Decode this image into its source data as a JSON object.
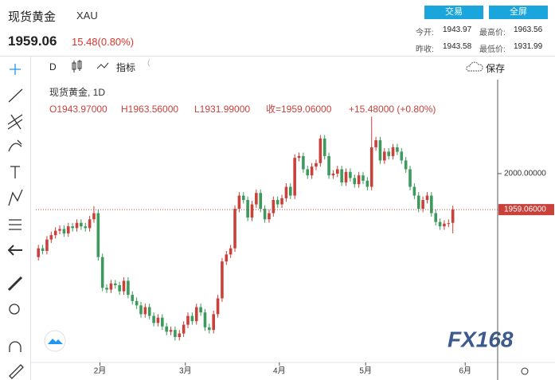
{
  "header": {
    "name": "现货黄金",
    "symbol": "XAU",
    "price": "1959.06",
    "change": "15.48(0.80%)",
    "buttons": [
      "交易",
      "全屏"
    ],
    "stats": [
      [
        "今开:",
        "1943.97",
        "最高价:",
        "1963.56"
      ],
      [
        "昨收:",
        "1943.58",
        "最低价:",
        "1931.99"
      ]
    ]
  },
  "toolbar": {
    "interval": "D",
    "indicators": "指标",
    "save": "保存"
  },
  "legend": {
    "title": "现货黄金, 1D",
    "ohlc": [
      "O1943.97000",
      "H1963.56000",
      "L1931.99000",
      "收=1959.06000",
      "+15.48000 (+0.80%)"
    ]
  },
  "watermark": "FX168",
  "chart_data": {
    "type": "candlestick",
    "up_color": "#c9413b",
    "down_color": "#3b9a5c",
    "ylim": [
      1785,
      2107
    ],
    "yticks": [
      {
        "value": 2000,
        "label": "2000.00000"
      }
    ],
    "xlim": [
      -0.6,
      107.5
    ],
    "xticks": [
      {
        "value": 14.4,
        "label": "2月"
      },
      {
        "value": 34.4,
        "label": "3月"
      },
      {
        "value": 56.4,
        "label": "4月"
      },
      {
        "value": 76.6,
        "label": "5月"
      },
      {
        "value": 99.9,
        "label": "6月"
      }
    ],
    "last_price": 1959.06,
    "last_price_label": "1959.06000",
    "open": [
      1905,
      1915,
      1912,
      1925,
      1930,
      1935,
      1937,
      1932,
      1940,
      1938,
      1944,
      1940,
      1938,
      1948,
      1955,
      1905,
      1870,
      1868,
      1875,
      1873,
      1866,
      1878,
      1862,
      1855,
      1850,
      1840,
      1848,
      1838,
      1830,
      1836,
      1826,
      1820,
      1822,
      1814,
      1818,
      1828,
      1838,
      1832,
      1848,
      1842,
      1825,
      1822,
      1840,
      1858,
      1900,
      1908,
      1915,
      1960,
      1975,
      1970,
      1950,
      1965,
      1978,
      1960,
      1948,
      1955,
      1970,
      1965,
      1972,
      1985,
      1975,
      2018,
      2020,
      2005,
      1998,
      2008,
      2012,
      2040,
      2020,
      1998,
      2000,
      2005,
      1990,
      2002,
      1995,
      1988,
      1998,
      1992,
      1985,
      2030,
      2038,
      2015,
      2025,
      2020,
      2030,
      2025,
      2015,
      2005,
      1985,
      1975,
      1960,
      1970,
      1975,
      1955,
      1945,
      1940,
      1943,
      1943.97
    ],
    "high": [
      1919,
      1919,
      1929,
      1934,
      1939,
      1941,
      1941,
      1944,
      1944,
      1948,
      1948,
      1944,
      1952,
      1963,
      1959,
      1909,
      1874,
      1879,
      1879,
      1877,
      1882,
      1882,
      1866,
      1859,
      1854,
      1852,
      1852,
      1842,
      1840,
      1840,
      1830,
      1826,
      1826,
      1822,
      1832,
      1842,
      1842,
      1852,
      1852,
      1846,
      1829,
      1844,
      1862,
      1904,
      1912,
      1919,
      1964,
      1979,
      1979,
      1974,
      1969,
      1982,
      1982,
      1964,
      1959,
      1974,
      1974,
      1976,
      1989,
      1989,
      2022,
      2024,
      2024,
      2009,
      2012,
      2016,
      2044,
      2044,
      2024,
      2004,
      2009,
      2009,
      2006,
      2006,
      1999,
      2002,
      2002,
      1996,
      2065,
      2042,
      2042,
      2029,
      2029,
      2034,
      2034,
      2029,
      2019,
      2009,
      1989,
      1979,
      1974,
      1979,
      1979,
      1959,
      1949,
      1947,
      1948,
      1963.56
    ],
    "low": [
      1901,
      1908,
      1908,
      1921,
      1926,
      1931,
      1928,
      1928,
      1934,
      1934,
      1936,
      1934,
      1934,
      1944,
      1901,
      1866,
      1864,
      1864,
      1869,
      1862,
      1862,
      1858,
      1851,
      1846,
      1836,
      1836,
      1834,
      1826,
      1826,
      1822,
      1816,
      1816,
      1810,
      1810,
      1814,
      1824,
      1828,
      1828,
      1838,
      1821,
      1818,
      1818,
      1836,
      1854,
      1896,
      1904,
      1911,
      1956,
      1966,
      1946,
      1946,
      1961,
      1956,
      1944,
      1944,
      1951,
      1961,
      1961,
      1968,
      1971,
      1971,
      2014,
      2001,
      1994,
      1994,
      2004,
      2008,
      2016,
      1994,
      1994,
      1996,
      1986,
      1986,
      1991,
      1984,
      1984,
      1988,
      1981,
      1981,
      2026,
      2011,
      2011,
      2016,
      2016,
      2021,
      2011,
      2001,
      1981,
      1971,
      1956,
      1956,
      1966,
      1951,
      1941,
      1936,
      1936,
      1939,
      1931.99
    ],
    "close": [
      1915,
      1912,
      1925,
      1930,
      1935,
      1937,
      1932,
      1940,
      1938,
      1944,
      1940,
      1938,
      1948,
      1955,
      1905,
      1870,
      1868,
      1875,
      1873,
      1866,
      1878,
      1862,
      1855,
      1850,
      1840,
      1848,
      1838,
      1830,
      1836,
      1826,
      1820,
      1822,
      1814,
      1818,
      1828,
      1838,
      1832,
      1848,
      1842,
      1825,
      1822,
      1840,
      1858,
      1900,
      1908,
      1915,
      1960,
      1975,
      1970,
      1950,
      1965,
      1978,
      1960,
      1948,
      1955,
      1970,
      1965,
      1972,
      1985,
      1975,
      2018,
      2020,
      2005,
      1998,
      2008,
      2012,
      2040,
      2020,
      1998,
      2000,
      2005,
      1990,
      2002,
      1995,
      1988,
      1998,
      1992,
      1985,
      2030,
      2038,
      2015,
      2025,
      2020,
      2030,
      2025,
      2015,
      2005,
      1985,
      1975,
      1960,
      1970,
      1975,
      1955,
      1945,
      1940,
      1943,
      1943.58,
      1959.06
    ]
  }
}
